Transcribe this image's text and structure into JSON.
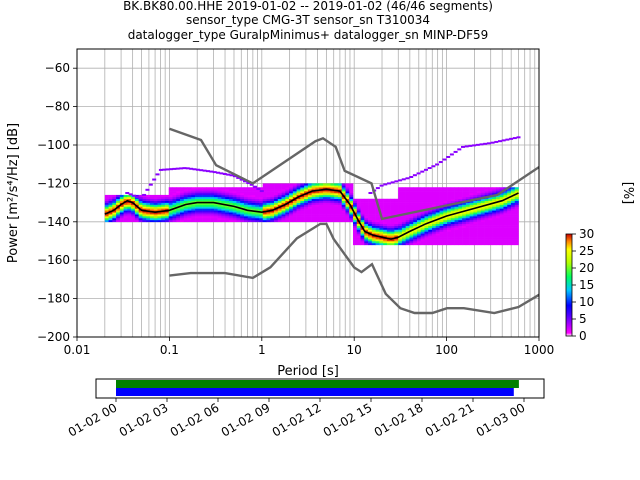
{
  "chart_data": {
    "type": "heatmap",
    "title_lines": [
      "BK.BK80.00.HHE   2019-01-02 -- 2019-01-02  (46/46 segments)",
      "sensor_type CMG-3T sensor_sn T310034",
      "datalogger_type GuralpMinimus+ datalogger_sn MINP-DF59"
    ],
    "xlabel": "Period [s]",
    "ylabel": "Power [m²/s⁴/Hz] [dB]",
    "x_scale": "log",
    "xlim": [
      0.01,
      1000
    ],
    "ylim": [
      -200,
      -50
    ],
    "x_ticks": [
      0.01,
      0.1,
      1,
      10,
      100,
      1000
    ],
    "x_tick_labels": [
      "0.01",
      "0.1",
      "1",
      "10",
      "100",
      "1000"
    ],
    "y_ticks": [
      -200,
      -180,
      -160,
      -140,
      -120,
      -100,
      -80,
      -60
    ],
    "y_tick_labels": [
      "−200",
      "−180",
      "−160",
      "−140",
      "−120",
      "−100",
      "−80",
      "−60"
    ],
    "grid": true,
    "colorbar": {
      "label": "[%]",
      "min": 0,
      "max": 30,
      "ticks": [
        0,
        5,
        10,
        15,
        20,
        25,
        30
      ],
      "tick_labels": [
        "0",
        "5",
        "10",
        "15",
        "20",
        "25",
        "30"
      ]
    },
    "noise_models": [
      {
        "name": "NHNM",
        "color": "#666666",
        "points": [
          [
            0.1,
            -91.5
          ],
          [
            0.22,
            -97.4
          ],
          [
            0.32,
            -110.5
          ],
          [
            0.8,
            -120
          ],
          [
            3.8,
            -98
          ],
          [
            4.6,
            -96.5
          ],
          [
            6.3,
            -101
          ],
          [
            7.9,
            -113.5
          ],
          [
            15.4,
            -120
          ],
          [
            20,
            -138.5
          ],
          [
            354.8,
            -126
          ],
          [
            1000,
            -111.5
          ]
        ]
      },
      {
        "name": "NLNM",
        "color": "#666666",
        "points": [
          [
            0.1,
            -168
          ],
          [
            0.17,
            -166.7
          ],
          [
            0.4,
            -166.7
          ],
          [
            0.8,
            -169.2
          ],
          [
            1.24,
            -163.7
          ],
          [
            2.4,
            -148.6
          ],
          [
            4.3,
            -141.1
          ],
          [
            5,
            -141.1
          ],
          [
            6,
            -149
          ],
          [
            10,
            -163.8
          ],
          [
            12,
            -166.2
          ],
          [
            15.6,
            -162.1
          ],
          [
            21.9,
            -177.5
          ],
          [
            31.6,
            -185
          ],
          [
            45,
            -187.5
          ],
          [
            70,
            -187.5
          ],
          [
            101,
            -185
          ],
          [
            154,
            -185
          ],
          [
            328,
            -187.5
          ],
          [
            600,
            -184.4
          ],
          [
            1000,
            -178
          ]
        ]
      }
    ],
    "mode_curve": {
      "color": "#000000",
      "points": [
        [
          0.02,
          -136
        ],
        [
          0.025,
          -134
        ],
        [
          0.03,
          -131
        ],
        [
          0.035,
          -129
        ],
        [
          0.04,
          -130
        ],
        [
          0.05,
          -134
        ],
        [
          0.07,
          -135
        ],
        [
          0.1,
          -134
        ],
        [
          0.15,
          -131
        ],
        [
          0.2,
          -130
        ],
        [
          0.3,
          -130
        ],
        [
          0.5,
          -132
        ],
        [
          0.7,
          -134
        ],
        [
          1,
          -135
        ],
        [
          1.3,
          -134
        ],
        [
          1.8,
          -131
        ],
        [
          2.5,
          -127
        ],
        [
          3.5,
          -124
        ],
        [
          5,
          -123
        ],
        [
          7,
          -124
        ],
        [
          9,
          -131
        ],
        [
          11,
          -139
        ],
        [
          13,
          -145
        ],
        [
          16,
          -147
        ],
        [
          20,
          -148
        ],
        [
          25,
          -149
        ],
        [
          30,
          -148
        ],
        [
          40,
          -145
        ],
        [
          60,
          -141
        ],
        [
          100,
          -137
        ],
        [
          200,
          -133
        ],
        [
          400,
          -129
        ],
        [
          600,
          -125
        ]
      ]
    },
    "density_bands": [
      {
        "period_range": [
          0.02,
          0.1
        ],
        "power_range": [
          -140,
          -126
        ],
        "peak_power": -134,
        "max_percent": 30
      },
      {
        "period_range": [
          0.1,
          1
        ],
        "power_range": [
          -140,
          -122
        ],
        "peak_power": -132,
        "max_percent": 20
      },
      {
        "period_range": [
          1,
          10
        ],
        "power_range": [
          -140,
          -120
        ],
        "peak_power": -128,
        "max_percent": 30
      },
      {
        "period_range": [
          10,
          30
        ],
        "power_range": [
          -152,
          -128
        ],
        "peak_power": -147,
        "max_percent": 30
      },
      {
        "period_range": [
          30,
          600
        ],
        "power_range": [
          -152,
          -122
        ],
        "peak_power": -138,
        "max_percent": 25
      }
    ],
    "outlier_traces": [
      {
        "points": [
          [
            0.035,
            -125
          ],
          [
            0.05,
            -128
          ],
          [
            0.08,
            -113
          ],
          [
            0.15,
            -112
          ],
          [
            0.3,
            -114
          ],
          [
            0.5,
            -116
          ],
          [
            0.8,
            -121
          ],
          [
            1,
            -124
          ]
        ]
      },
      {
        "points": [
          [
            15,
            -125
          ],
          [
            20,
            -121
          ],
          [
            40,
            -117
          ],
          [
            80,
            -110
          ],
          [
            150,
            -101
          ],
          [
            300,
            -99
          ],
          [
            600,
            -96
          ]
        ]
      }
    ],
    "time_axis": {
      "tick_labels": [
        "01-02 00",
        "01-02 03",
        "01-02 06",
        "01-02 09",
        "01-02 12",
        "01-02 15",
        "01-02 18",
        "01-02 21",
        "01-03 00"
      ],
      "coverage_bars": [
        {
          "color": "#008000",
          "start_hour": 0,
          "end_hour": 23.7
        },
        {
          "color": "#0000ff",
          "start_hour": 0,
          "end_hour": 23.4
        }
      ]
    }
  }
}
